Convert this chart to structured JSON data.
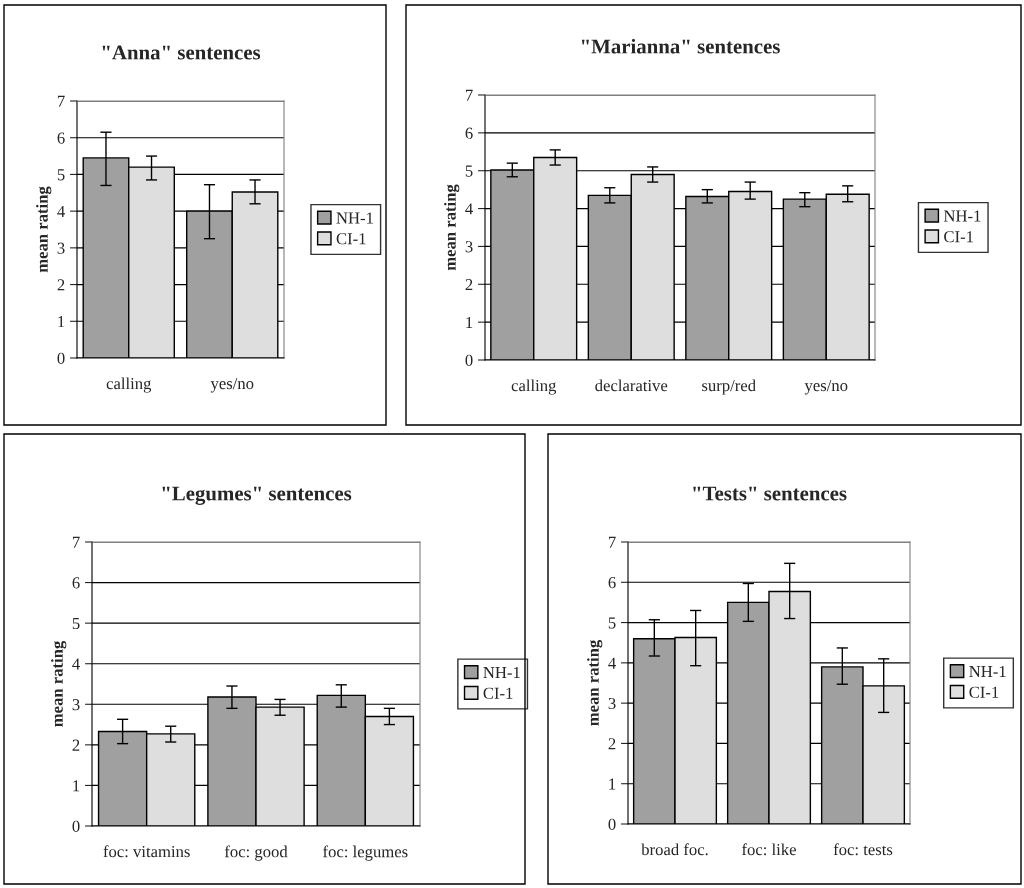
{
  "chart_data": [
    {
      "type": "bar",
      "title": "\"Anna\" sentences",
      "ylabel": "mean rating",
      "categories": [
        "calling",
        "yes/no"
      ],
      "ylim": [
        0,
        7
      ],
      "yticks": [
        0,
        1,
        2,
        3,
        4,
        5,
        6,
        7
      ],
      "grid": "y",
      "legend": "right",
      "series": [
        {
          "name": "NH-1",
          "color": "#a0a0a0",
          "values": [
            5.45,
            4.0
          ],
          "errors": [
            [
              4.7,
              6.15
            ],
            [
              3.25,
              4.72
            ]
          ]
        },
        {
          "name": "CI-1",
          "color": "#dedede",
          "values": [
            5.2,
            4.52
          ],
          "errors": [
            [
              4.85,
              5.5
            ],
            [
              4.2,
              4.85
            ]
          ]
        }
      ]
    },
    {
      "type": "bar",
      "title": "\"Marianna\" sentences",
      "ylabel": "mean rating",
      "categories": [
        "calling",
        "declarative",
        "surp/red",
        "yes/no"
      ],
      "ylim": [
        0,
        7
      ],
      "yticks": [
        0,
        1,
        2,
        3,
        4,
        5,
        6,
        7
      ],
      "grid": "y",
      "legend": "right",
      "series": [
        {
          "name": "NH-1",
          "color": "#a0a0a0",
          "values": [
            5.02,
            4.35,
            4.32,
            4.25
          ],
          "errors": [
            [
              4.84,
              5.2
            ],
            [
              4.15,
              4.55
            ],
            [
              4.15,
              4.5
            ],
            [
              4.05,
              4.42
            ]
          ]
        },
        {
          "name": "CI-1",
          "color": "#dedede",
          "values": [
            5.35,
            4.9,
            4.45,
            4.38
          ],
          "errors": [
            [
              5.15,
              5.55
            ],
            [
              4.7,
              5.1
            ],
            [
              4.25,
              4.7
            ],
            [
              4.18,
              4.6
            ]
          ]
        }
      ]
    },
    {
      "type": "bar",
      "title": "\"Legumes\" sentences",
      "ylabel": "mean rating",
      "categories": [
        "foc: vitamins",
        "foc: good",
        "foc: legumes"
      ],
      "ylim": [
        0,
        7
      ],
      "yticks": [
        0,
        1,
        2,
        3,
        4,
        5,
        6,
        7
      ],
      "grid": "y",
      "legend": "right",
      "series": [
        {
          "name": "NH-1",
          "color": "#a0a0a0",
          "values": [
            2.33,
            3.18,
            3.22
          ],
          "errors": [
            [
              2.03,
              2.63
            ],
            [
              2.9,
              3.45
            ],
            [
              2.93,
              3.48
            ]
          ]
        },
        {
          "name": "CI-1",
          "color": "#dedede",
          "values": [
            2.27,
            2.93,
            2.7
          ],
          "errors": [
            [
              2.07,
              2.46
            ],
            [
              2.73,
              3.12
            ],
            [
              2.5,
              2.9
            ]
          ]
        }
      ]
    },
    {
      "type": "bar",
      "title": "\"Tests\" sentences",
      "ylabel": "mean rating",
      "categories": [
        "broad foc.",
        "foc: like",
        "foc: tests"
      ],
      "ylim": [
        0,
        7
      ],
      "yticks": [
        0,
        1,
        2,
        3,
        4,
        5,
        6,
        7
      ],
      "grid": "y",
      "legend": "right",
      "series": [
        {
          "name": "NH-1",
          "color": "#a0a0a0",
          "values": [
            4.6,
            5.5,
            3.9
          ],
          "errors": [
            [
              4.17,
              5.07
            ],
            [
              5.03,
              5.97
            ],
            [
              3.47,
              4.37
            ]
          ]
        },
        {
          "name": "CI-1",
          "color": "#dedede",
          "values": [
            4.63,
            5.77,
            3.43
          ],
          "errors": [
            [
              3.93,
              5.3
            ],
            [
              5.1,
              6.47
            ],
            [
              2.77,
              4.1
            ]
          ]
        }
      ]
    }
  ]
}
